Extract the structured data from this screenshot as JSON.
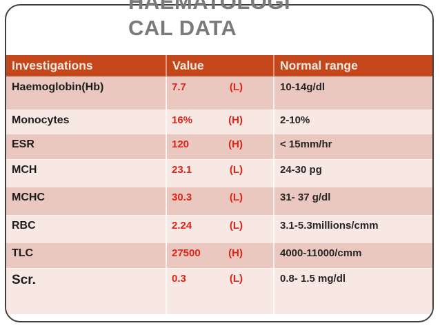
{
  "slide": {
    "title_line1": "HAEMATOLOGI",
    "title_line2": "CAL DATA"
  },
  "table": {
    "headers": [
      "Investigations",
      "Value",
      "Normal range"
    ],
    "rows": [
      {
        "investigation": "Haemoglobin(Hb)",
        "value": "7.7",
        "flag": "(L)",
        "normal_range": "10-14g/dl"
      },
      {
        "investigation": "Monocytes",
        "value": "16%",
        "flag": "(H)",
        "normal_range": "2-10%"
      },
      {
        "investigation": "ESR",
        "value": "120",
        "flag": "(H)",
        "normal_range": "< 15mm/hr"
      },
      {
        "investigation": "MCH",
        "value": "23.1",
        "flag": "(L)",
        "normal_range": "24-30 pg"
      },
      {
        "investigation": "MCHC",
        "value": "30.3",
        "flag": "(L)",
        "normal_range": "31- 37 g/dl"
      },
      {
        "investigation": "RBC",
        "value": "2.24",
        "flag": "(L)",
        "normal_range": "3.1-5.3millions/cmm"
      },
      {
        "investigation": "TLC",
        "value": "27500",
        "flag": "(H)",
        "normal_range": "4000-11000/cmm"
      },
      {
        "investigation": "Scr.",
        "value": "0.3",
        "flag": "(L)",
        "normal_range": "0.8- 1.5 mg/dl"
      }
    ]
  },
  "colors": {
    "header_bg": "#c4471c",
    "band_dark": "#eac8bf",
    "band_light": "#f8e8e4",
    "abnormal_value": "#e02318",
    "title_gray": "#7a7a7a",
    "card_border": "#3f3f3f"
  }
}
